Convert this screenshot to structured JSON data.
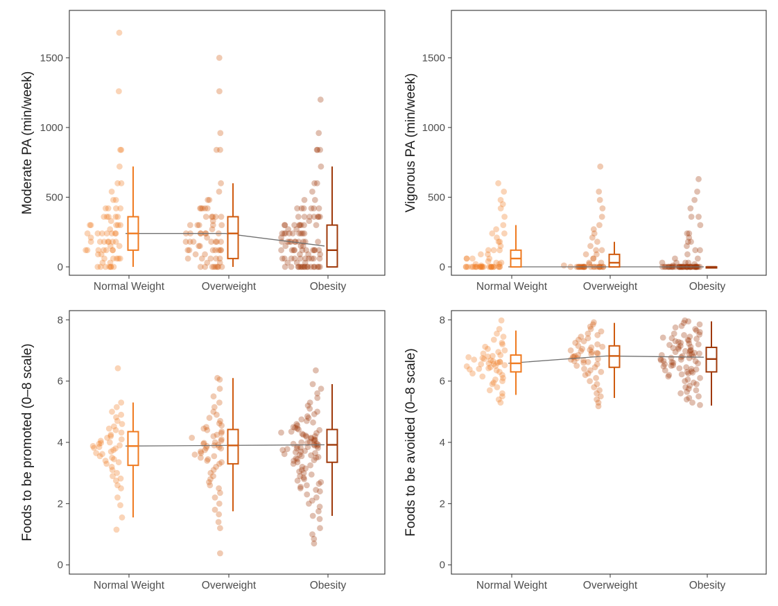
{
  "chart_data": [
    {
      "type": "box",
      "title": "",
      "xlabel": "",
      "ylabel": "Moderate PA (min/week)",
      "ylim": [
        -60,
        1840
      ],
      "yticks": [
        0,
        500,
        1000,
        1500
      ],
      "categories": [
        "Normal Weight",
        "Overweight",
        "Obesity"
      ],
      "boxes": [
        {
          "category": "Normal Weight",
          "min": 0,
          "q1": 120,
          "median": 240,
          "q3": 360,
          "max": 720
        },
        {
          "category": "Overweight",
          "min": 0,
          "q1": 60,
          "median": 240,
          "q3": 360,
          "max": 600
        },
        {
          "category": "Obesity",
          "min": 0,
          "q1": 0,
          "median": 120,
          "q3": 300,
          "max": 720
        }
      ],
      "trend": [
        240,
        240,
        150
      ],
      "points": [
        {
          "category": "Normal Weight",
          "values": [
            1680,
            1260,
            840,
            840,
            720,
            600,
            600,
            540,
            480,
            480,
            420,
            420,
            420,
            420,
            360,
            360,
            360,
            360,
            360,
            330,
            300,
            300,
            300,
            300,
            300,
            270,
            240,
            240,
            240,
            240,
            240,
            240,
            240,
            210,
            180,
            180,
            180,
            180,
            180,
            180,
            180,
            150,
            150,
            120,
            120,
            120,
            120,
            120,
            120,
            120,
            90,
            90,
            60,
            60,
            60,
            60,
            60,
            30,
            30,
            0,
            0,
            0,
            0,
            0,
            0,
            0
          ]
        },
        {
          "category": "Overweight",
          "values": [
            1500,
            1260,
            960,
            840,
            840,
            600,
            540,
            480,
            480,
            420,
            420,
            420,
            420,
            420,
            360,
            360,
            360,
            360,
            360,
            330,
            300,
            300,
            300,
            300,
            300,
            270,
            240,
            240,
            240,
            240,
            240,
            240,
            240,
            210,
            180,
            180,
            180,
            180,
            180,
            180,
            180,
            150,
            150,
            120,
            120,
            120,
            120,
            120,
            120,
            120,
            90,
            90,
            60,
            60,
            60,
            60,
            60,
            30,
            30,
            0,
            0,
            0,
            0,
            0,
            0,
            0,
            0
          ]
        },
        {
          "category": "Obesity",
          "values": [
            1200,
            960,
            840,
            840,
            840,
            720,
            600,
            600,
            540,
            480,
            480,
            420,
            420,
            420,
            420,
            420,
            420,
            360,
            360,
            360,
            360,
            360,
            360,
            360,
            330,
            300,
            300,
            300,
            300,
            300,
            300,
            300,
            300,
            270,
            270,
            240,
            240,
            240,
            240,
            240,
            240,
            240,
            240,
            240,
            210,
            180,
            180,
            180,
            180,
            180,
            180,
            180,
            180,
            180,
            180,
            150,
            150,
            150,
            120,
            120,
            120,
            120,
            120,
            120,
            120,
            120,
            120,
            120,
            90,
            90,
            90,
            60,
            60,
            60,
            60,
            60,
            60,
            60,
            60,
            60,
            60,
            30,
            30,
            30,
            0,
            0,
            0,
            0,
            0,
            0,
            0,
            0,
            0,
            0,
            0,
            0,
            0,
            0,
            0,
            0,
            0
          ]
        }
      ]
    },
    {
      "type": "box",
      "title": "",
      "xlabel": "",
      "ylabel": "Vigorous PA (min/week)",
      "ylim": [
        -60,
        1840
      ],
      "yticks": [
        0,
        500,
        1000,
        1500
      ],
      "categories": [
        "Normal Weight",
        "Overweight",
        "Obesity"
      ],
      "boxes": [
        {
          "category": "Normal Weight",
          "min": 0,
          "q1": 0,
          "median": 60,
          "q3": 120,
          "max": 300
        },
        {
          "category": "Overweight",
          "min": 0,
          "q1": 0,
          "median": 30,
          "q3": 90,
          "max": 180
        },
        {
          "category": "Obesity",
          "min": 0,
          "q1": 0,
          "median": 0,
          "q3": 0,
          "max": 0
        }
      ],
      "trend": [
        0,
        0,
        0
      ],
      "points": [
        {
          "category": "Normal Weight",
          "values": [
            600,
            540,
            480,
            450,
            420,
            360,
            300,
            270,
            240,
            240,
            210,
            180,
            180,
            150,
            120,
            120,
            120,
            90,
            90,
            60,
            60,
            60,
            60,
            40,
            30,
            30,
            20,
            20,
            10,
            0,
            0,
            0,
            0,
            0,
            0,
            0,
            0,
            0,
            0,
            0,
            0,
            0,
            0,
            0,
            0,
            0,
            0,
            0,
            0,
            0,
            0,
            0,
            0
          ]
        },
        {
          "category": "Overweight",
          "values": [
            720,
            540,
            480,
            420,
            360,
            300,
            270,
            240,
            210,
            180,
            150,
            120,
            120,
            90,
            90,
            60,
            60,
            30,
            30,
            20,
            10,
            0,
            0,
            0,
            0,
            0,
            0,
            0,
            0,
            0,
            0,
            0,
            0,
            0,
            0,
            0,
            0,
            0,
            0,
            0,
            0,
            0,
            0,
            0
          ]
        },
        {
          "category": "Obesity",
          "values": [
            630,
            540,
            480,
            420,
            360,
            360,
            300,
            240,
            240,
            210,
            180,
            180,
            150,
            120,
            120,
            90,
            60,
            60,
            30,
            30,
            30,
            30,
            20,
            10,
            0,
            0,
            0,
            0,
            0,
            0,
            0,
            0,
            0,
            0,
            0,
            0,
            0,
            0,
            0,
            0,
            0,
            0,
            0,
            0,
            0,
            0,
            0,
            0,
            0,
            0,
            0,
            0,
            0,
            0,
            0,
            0,
            0,
            0,
            0,
            0,
            0,
            0,
            0,
            0,
            0,
            0,
            0,
            0
          ]
        }
      ]
    },
    {
      "type": "box",
      "title": "",
      "xlabel": "",
      "ylabel": "Foods to be promoted (0–8 scale)",
      "ylim": [
        -0.3,
        8.3
      ],
      "yticks": [
        0,
        2,
        4,
        6,
        8
      ],
      "categories": [
        "Normal Weight",
        "Overweight",
        "Obesity"
      ],
      "boxes": [
        {
          "category": "Normal Weight",
          "min": 1.55,
          "q1": 3.25,
          "median": 3.88,
          "q3": 4.35,
          "max": 5.3
        },
        {
          "category": "Overweight",
          "min": 1.75,
          "q1": 3.3,
          "median": 3.9,
          "q3": 4.42,
          "max": 6.1
        },
        {
          "category": "Obesity",
          "min": 1.6,
          "q1": 3.35,
          "median": 3.92,
          "q3": 4.42,
          "max": 5.9
        }
      ],
      "trend": [
        3.88,
        3.9,
        3.92
      ],
      "points": [
        {
          "category": "Normal Weight",
          "values": [
            6.42,
            5.3,
            5.15,
            5.0,
            4.9,
            4.82,
            4.7,
            4.6,
            4.52,
            4.45,
            4.4,
            4.32,
            4.25,
            4.2,
            4.15,
            4.1,
            4.05,
            4.0,
            3.98,
            3.95,
            3.9,
            3.88,
            3.85,
            3.82,
            3.8,
            3.75,
            3.7,
            3.65,
            3.62,
            3.55,
            3.5,
            3.45,
            3.4,
            3.35,
            3.3,
            3.2,
            3.1,
            3.0,
            2.9,
            2.82,
            2.75,
            2.6,
            2.5,
            2.2,
            1.95,
            1.55,
            1.15
          ]
        },
        {
          "category": "Overweight",
          "values": [
            6.1,
            6.05,
            5.75,
            5.5,
            5.3,
            5.15,
            5.0,
            4.9,
            4.8,
            4.7,
            4.62,
            4.55,
            4.5,
            4.45,
            4.4,
            4.35,
            4.3,
            4.25,
            4.2,
            4.15,
            4.1,
            4.05,
            4.0,
            3.98,
            3.95,
            3.92,
            3.9,
            3.88,
            3.85,
            3.82,
            3.8,
            3.75,
            3.7,
            3.65,
            3.6,
            3.55,
            3.5,
            3.45,
            3.4,
            3.35,
            3.3,
            3.2,
            3.1,
            3.0,
            2.9,
            2.8,
            2.7,
            2.6,
            2.5,
            2.35,
            2.2,
            2.0,
            1.8,
            1.65,
            1.4,
            1.2,
            0.38
          ]
        },
        {
          "category": "Obesity",
          "values": [
            6.35,
            5.9,
            5.75,
            5.6,
            5.45,
            5.3,
            5.2,
            5.1,
            5.0,
            4.92,
            4.85,
            4.8,
            4.75,
            4.7,
            4.65,
            4.6,
            4.55,
            4.5,
            4.48,
            4.45,
            4.42,
            4.4,
            4.35,
            4.32,
            4.3,
            4.28,
            4.25,
            4.22,
            4.2,
            4.18,
            4.15,
            4.12,
            4.1,
            4.08,
            4.05,
            4.02,
            4.0,
            3.98,
            3.96,
            3.95,
            3.93,
            3.92,
            3.9,
            3.88,
            3.86,
            3.85,
            3.83,
            3.82,
            3.8,
            3.78,
            3.75,
            3.72,
            3.7,
            3.68,
            3.65,
            3.62,
            3.6,
            3.58,
            3.55,
            3.52,
            3.5,
            3.48,
            3.45,
            3.42,
            3.4,
            3.35,
            3.3,
            3.25,
            3.2,
            3.15,
            3.1,
            3.05,
            3.0,
            2.95,
            2.9,
            2.85,
            2.8,
            2.75,
            2.7,
            2.65,
            2.6,
            2.55,
            2.5,
            2.45,
            2.4,
            2.3,
            2.2,
            2.1,
            2.0,
            1.9,
            1.75,
            1.6,
            1.5,
            1.2,
            1.0,
            0.85,
            0.7
          ]
        }
      ]
    },
    {
      "type": "box",
      "title": "",
      "xlabel": "",
      "ylabel": "Foods to be avoided (0–8 scale)",
      "ylim": [
        -0.3,
        8.3
      ],
      "yticks": [
        0,
        2,
        4,
        6,
        8
      ],
      "categories": [
        "Normal Weight",
        "Overweight",
        "Obesity"
      ],
      "boxes": [
        {
          "category": "Normal Weight",
          "min": 5.55,
          "q1": 6.3,
          "median": 6.58,
          "q3": 6.85,
          "max": 7.65
        },
        {
          "category": "Overweight",
          "min": 5.45,
          "q1": 6.45,
          "median": 6.82,
          "q3": 7.15,
          "max": 7.9
        },
        {
          "category": "Obesity",
          "min": 5.2,
          "q1": 6.3,
          "median": 6.72,
          "q3": 7.1,
          "max": 7.95
        }
      ],
      "trend": [
        6.58,
        6.82,
        6.78
      ],
      "points": [
        {
          "category": "Normal Weight",
          "values": [
            7.98,
            7.7,
            7.55,
            7.45,
            7.35,
            7.25,
            7.2,
            7.12,
            7.05,
            7.0,
            6.95,
            6.9,
            6.85,
            6.82,
            6.8,
            6.78,
            6.75,
            6.72,
            6.7,
            6.68,
            6.65,
            6.63,
            6.62,
            6.6,
            6.58,
            6.56,
            6.55,
            6.52,
            6.5,
            6.48,
            6.45,
            6.42,
            6.4,
            6.38,
            6.35,
            6.3,
            6.25,
            6.2,
            6.15,
            6.1,
            6.05,
            6.0,
            5.95,
            5.9,
            5.8,
            5.7,
            5.6,
            5.5,
            5.4,
            5.3
          ]
        },
        {
          "category": "Overweight",
          "values": [
            7.92,
            7.85,
            7.78,
            7.7,
            7.62,
            7.55,
            7.5,
            7.45,
            7.4,
            7.35,
            7.3,
            7.25,
            7.2,
            7.15,
            7.12,
            7.1,
            7.05,
            7.02,
            7.0,
            6.98,
            6.95,
            6.92,
            6.9,
            6.88,
            6.85,
            6.82,
            6.8,
            6.78,
            6.75,
            6.72,
            6.7,
            6.68,
            6.65,
            6.62,
            6.6,
            6.55,
            6.5,
            6.45,
            6.4,
            6.35,
            6.3,
            6.25,
            6.2,
            6.1,
            6.0,
            5.9,
            5.8,
            5.7,
            5.6,
            5.5,
            5.4,
            5.3,
            5.18
          ]
        },
        {
          "category": "Obesity",
          "values": [
            7.98,
            7.95,
            7.9,
            7.85,
            7.8,
            7.75,
            7.7,
            7.65,
            7.6,
            7.55,
            7.52,
            7.5,
            7.45,
            7.42,
            7.4,
            7.38,
            7.35,
            7.32,
            7.3,
            7.28,
            7.25,
            7.22,
            7.2,
            7.18,
            7.15,
            7.12,
            7.1,
            7.08,
            7.05,
            7.02,
            7.0,
            6.98,
            6.96,
            6.95,
            6.92,
            6.9,
            6.88,
            6.86,
            6.85,
            6.82,
            6.8,
            6.78,
            6.76,
            6.75,
            6.72,
            6.7,
            6.68,
            6.66,
            6.65,
            6.62,
            6.6,
            6.58,
            6.55,
            6.52,
            6.5,
            6.48,
            6.45,
            6.42,
            6.4,
            6.38,
            6.35,
            6.32,
            6.3,
            6.28,
            6.25,
            6.22,
            6.2,
            6.15,
            6.1,
            6.05,
            6.0,
            5.95,
            5.9,
            5.85,
            5.8,
            5.75,
            5.7,
            5.65,
            5.6,
            5.5,
            5.45,
            5.4,
            5.3,
            5.22
          ]
        }
      ]
    }
  ],
  "colors": {
    "series": [
      "#ef7a1f",
      "#cf5a0e",
      "#9e3809"
    ],
    "trend_line": "#707070",
    "frame": "#333333",
    "tick": "#4d4d4d"
  }
}
